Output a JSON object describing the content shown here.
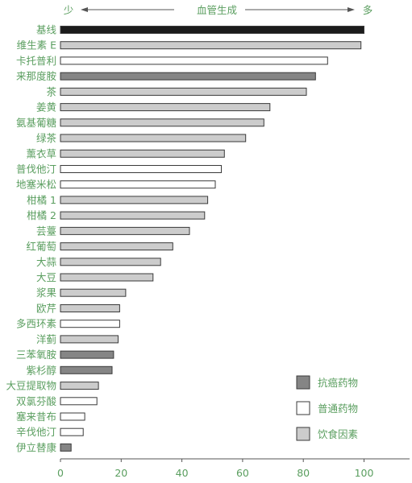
{
  "chart_data": {
    "type": "bar",
    "orientation": "horizontal",
    "header": {
      "left": "少",
      "center": "血管生成",
      "right": "多"
    },
    "categories": [
      "基线",
      "维生素 E",
      "卡托普利",
      "来那度胺",
      "茶",
      "姜黄",
      "氨基葡糖",
      "绿茶",
      "薰衣草",
      "普伐他汀",
      "地塞米松",
      "柑橘 1",
      "柑橘 2",
      "芸薹",
      "红葡萄",
      "大蒜",
      "大豆",
      "浆果",
      "欧芹",
      "多西环素",
      "洋蓟",
      "三苯氧胺",
      "紫杉醇",
      "大豆提取物",
      "双氯芬酸",
      "塞来昔布",
      "辛伐他汀",
      "伊立替康"
    ],
    "values": [
      100,
      99,
      88,
      84,
      81,
      69,
      67,
      61,
      54,
      53,
      51,
      48.5,
      47.5,
      42.5,
      37,
      33,
      30.5,
      21.5,
      19.5,
      19.5,
      19,
      17.5,
      17,
      12.5,
      12,
      8,
      7.5,
      3.5
    ],
    "colors": [
      "#1c1c1c",
      "#cccccc",
      "#ffffff",
      "#858585",
      "#cccccc",
      "#cccccc",
      "#cccccc",
      "#cccccc",
      "#cccccc",
      "#ffffff",
      "#ffffff",
      "#cccccc",
      "#cccccc",
      "#cccccc",
      "#cccccc",
      "#cccccc",
      "#cccccc",
      "#cccccc",
      "#cccccc",
      "#ffffff",
      "#cccccc",
      "#858585",
      "#858585",
      "#cccccc",
      "#ffffff",
      "#ffffff",
      "#ffffff",
      "#858585"
    ],
    "xlim": [
      0,
      115
    ],
    "xticks": [
      0,
      20,
      40,
      60,
      80,
      100
    ],
    "grid": false,
    "legend_position": "bottom-right",
    "legend": [
      {
        "label": "抗癌药物",
        "color": "#858585"
      },
      {
        "label": "普通药物",
        "color": "#ffffff"
      },
      {
        "label": "饮食因素",
        "color": "#cccccc"
      }
    ],
    "text_color": "#5a9e5f",
    "bar_edge_color": "#3a3a3a",
    "axis_color": "#555555"
  }
}
